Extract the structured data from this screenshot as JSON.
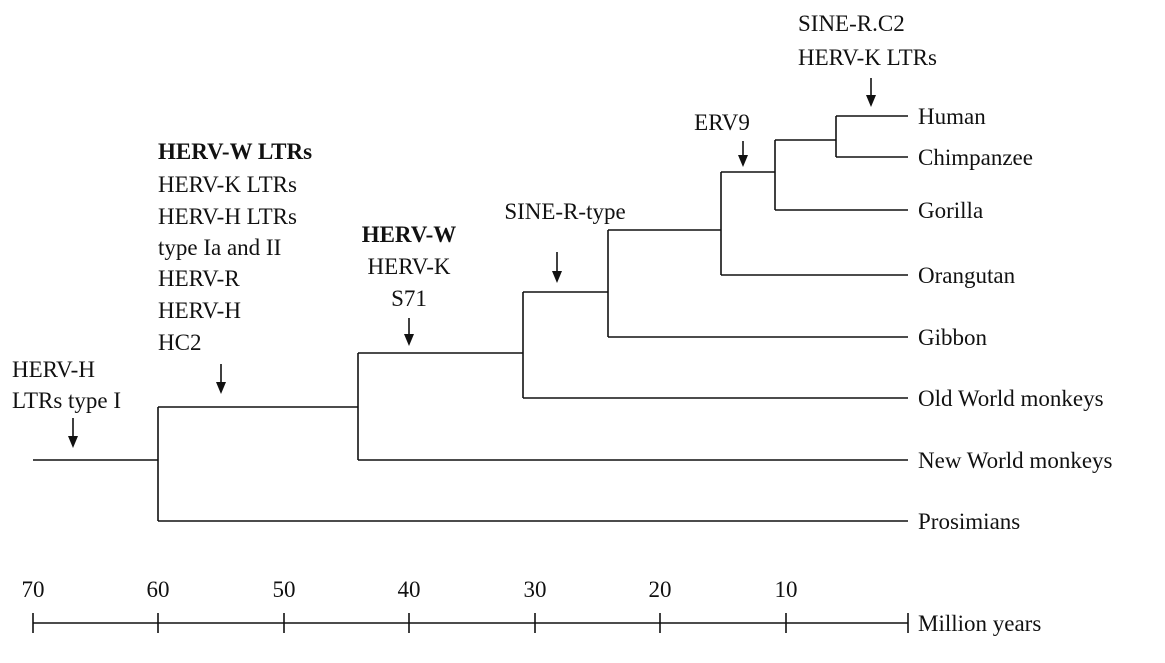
{
  "taxa": [
    {
      "id": "human",
      "label": "Human"
    },
    {
      "id": "chimp",
      "label": "Chimpanzee"
    },
    {
      "id": "gorilla",
      "label": "Gorilla"
    },
    {
      "id": "orangutan",
      "label": "Orangutan"
    },
    {
      "id": "gibbon",
      "label": "Gibbon"
    },
    {
      "id": "owm",
      "label": "Old World monkeys"
    },
    {
      "id": "nwm",
      "label": "New World monkeys"
    },
    {
      "id": "prosimians",
      "label": "Prosimians"
    }
  ],
  "events": [
    {
      "id": "root",
      "lines": [
        "HERV-H",
        "LTRs type I"
      ],
      "bold": [
        false,
        false
      ]
    },
    {
      "id": "haplorhini",
      "lines": [
        "HERV-W LTRs",
        "HERV-K LTRs",
        "HERV-H LTRs",
        "type Ia and II",
        "HERV-R",
        "HERV-H",
        "HC2"
      ],
      "bold": [
        true,
        false,
        false,
        false,
        false,
        false,
        false
      ]
    },
    {
      "id": "catarrhini",
      "lines": [
        "HERV-W",
        "HERV-K",
        "S71"
      ],
      "bold": [
        true,
        false,
        false
      ]
    },
    {
      "id": "hominoidea",
      "lines": [
        "SINE-R-type"
      ],
      "bold": [
        false
      ]
    },
    {
      "id": "african-apes",
      "lines": [
        "ERV9"
      ],
      "bold": [
        false
      ]
    },
    {
      "id": "human-chimp",
      "lines": [
        "SINE-R.C2",
        "HERV-K LTRs"
      ],
      "bold": [
        false,
        false
      ]
    }
  ],
  "timescale": {
    "ticks": [
      "70",
      "60",
      "50",
      "40",
      "30",
      "20",
      "10"
    ],
    "unit": "Million years"
  }
}
